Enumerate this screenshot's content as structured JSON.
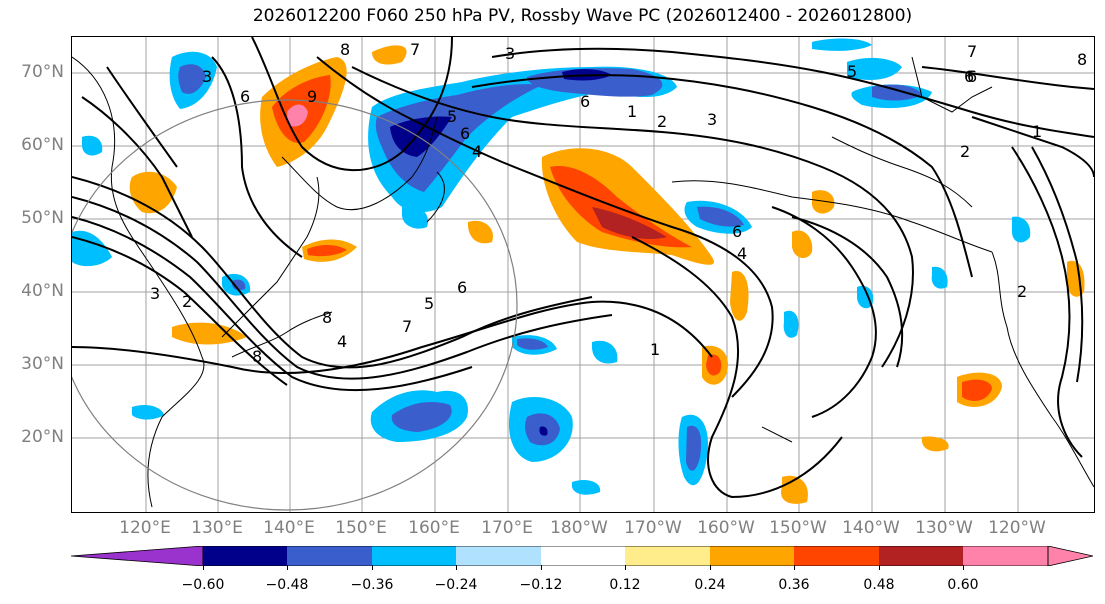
{
  "title": "2026012200 F060 250 hPa PV, Rossby Wave PC (2026012400 - 2026012800)",
  "map": {
    "lat_labels": [
      "70°N",
      "60°N",
      "50°N",
      "40°N",
      "30°N",
      "20°N"
    ],
    "lon_labels": [
      "120°E",
      "130°E",
      "140°E",
      "150°E",
      "160°E",
      "170°E",
      "180°W",
      "170°W",
      "160°W",
      "150°W",
      "140°W",
      "130°W",
      "120°W"
    ],
    "contour_labels": [
      "3",
      "8",
      "7",
      "3",
      "6",
      "9",
      "5",
      "6",
      "4",
      "6",
      "1",
      "2",
      "3",
      "6",
      "2",
      "5",
      "6",
      "4",
      "8",
      "3",
      "2",
      "5",
      "6",
      "7",
      "6",
      "7",
      "8",
      "1",
      "4",
      "8",
      "2",
      "1"
    ]
  },
  "colorbar": {
    "ticks": [
      "−0.60",
      "−0.48",
      "−0.36",
      "−0.24",
      "−0.12",
      "0.12",
      "0.24",
      "0.36",
      "0.48",
      "0.60"
    ],
    "colors": [
      "#9a32cd",
      "#00008b",
      "#3a5fcd",
      "#00bfff",
      "#b0e2ff",
      "#ffffff",
      "#ffec8b",
      "#ffa500",
      "#ff4500",
      "#b22222",
      "#ff82ab"
    ]
  }
}
